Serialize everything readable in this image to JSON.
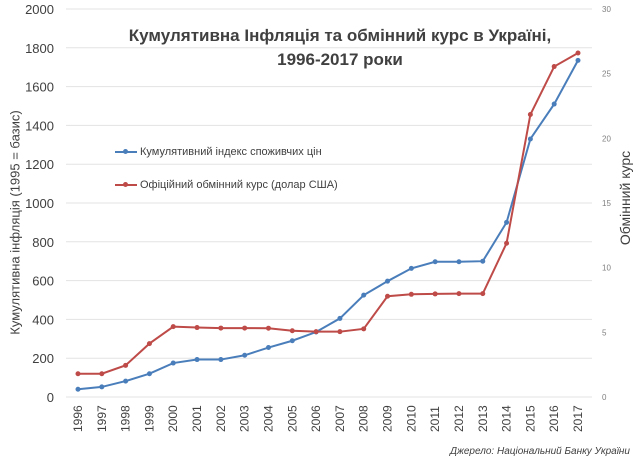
{
  "chart_data": {
    "type": "line",
    "title": "Кумулятивна Інфляція та обмінний курс в Україні,",
    "subtitle": "1996-2017 роки",
    "x": [
      "1996",
      "1997",
      "1998",
      "1999",
      "2000",
      "2001",
      "2002",
      "2003",
      "2004",
      "2005",
      "2006",
      "2007",
      "2008",
      "2009",
      "2010",
      "2011",
      "2012",
      "2013",
      "2014",
      "2015",
      "2016",
      "2017"
    ],
    "ylabel": "Кумулятивна інфляція (1995 = базис)",
    "y2label": "Обмінний курс",
    "ylim": [
      0,
      2000
    ],
    "y2lim": [
      0,
      30
    ],
    "yticks": [
      "0",
      "200",
      "400",
      "600",
      "800",
      "1000",
      "1200",
      "1400",
      "1600",
      "1800",
      "2000"
    ],
    "y2ticks": [
      "0",
      "5",
      "10",
      "15",
      "20",
      "25",
      "30"
    ],
    "grid": true,
    "legend_position": "left-middle",
    "series": [
      {
        "name": "Кумулятивний індекс споживчих цін",
        "axis": "left",
        "color": "#4a7ebb",
        "values": [
          40,
          52,
          82,
          120,
          175,
          193,
          193,
          215,
          255,
          290,
          335,
          405,
          525,
          597,
          663,
          697,
          697,
          700,
          900,
          1330,
          1510,
          1735
        ]
      },
      {
        "name": "Офіційний обмінний курс (долар США)",
        "axis": "right",
        "color": "#be4b48",
        "values": [
          1.8,
          1.8,
          2.45,
          4.13,
          5.44,
          5.37,
          5.33,
          5.33,
          5.32,
          5.12,
          5.05,
          5.05,
          5.27,
          7.79,
          7.94,
          7.97,
          7.99,
          7.99,
          11.89,
          21.84,
          25.55,
          26.6
        ]
      }
    ],
    "source": "Джерело: Національний Банку України"
  }
}
